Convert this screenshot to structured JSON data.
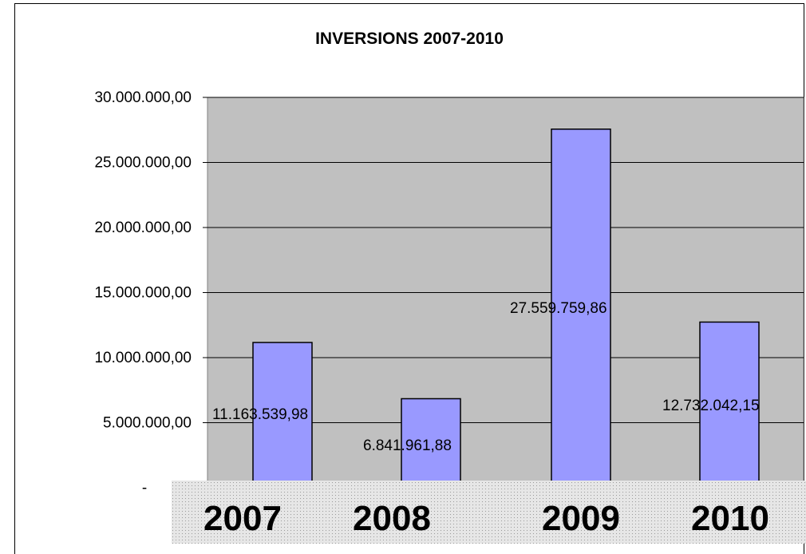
{
  "chart_data": {
    "type": "bar",
    "title": "INVERSIONS 2007-2010",
    "xlabel": "",
    "ylabel": "",
    "categories": [
      "2007",
      "2008",
      "2009",
      "2010"
    ],
    "values": [
      11163539.98,
      6841961.88,
      27559759.86,
      12732042.15
    ],
    "data_labels": [
      "11.163.539,98",
      "6.841.961,88",
      "27.559.759,86",
      "12.732.042,15"
    ],
    "ylim": [
      0,
      30000000
    ],
    "y_ticks": [
      0,
      5000000,
      10000000,
      15000000,
      20000000,
      25000000,
      30000000
    ],
    "y_tick_labels": [
      "-",
      "5.000.000,00",
      "10.000.000,00",
      "15.000.000,00",
      "20.000.000,00",
      "25.000.000,00",
      "30.000.000,00"
    ],
    "grid": true,
    "legend": "none",
    "colors": {
      "bar": "#9999ff",
      "plot_background": "#c0c0c0",
      "category_band": "#d8d8d8"
    }
  }
}
